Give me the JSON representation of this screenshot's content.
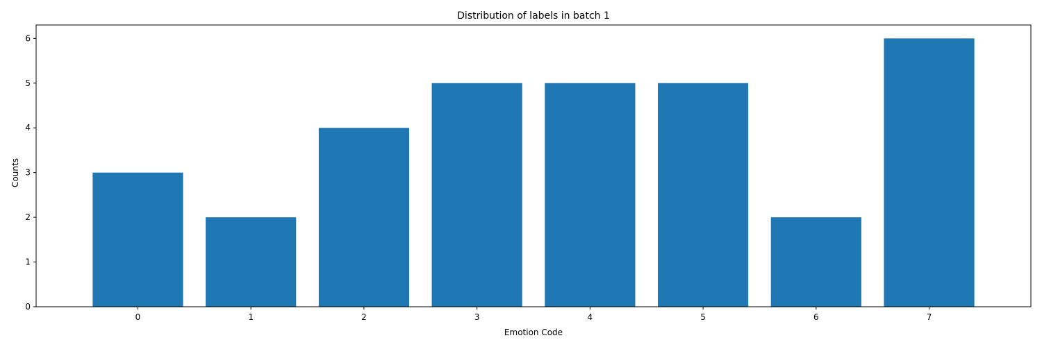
{
  "chart_data": {
    "type": "bar",
    "title": "Distribution of labels in batch 1",
    "xlabel": "Emotion Code",
    "ylabel": "Counts",
    "categories": [
      "0",
      "1",
      "2",
      "3",
      "4",
      "5",
      "6",
      "7"
    ],
    "values": [
      3,
      2,
      4,
      5,
      5,
      5,
      2,
      6
    ],
    "ylim": [
      0,
      6.3
    ],
    "yticks": [
      "0",
      "1",
      "2",
      "3",
      "4",
      "5",
      "6"
    ],
    "bar_color": "#1f77b4",
    "grid": false,
    "legend": "none"
  }
}
